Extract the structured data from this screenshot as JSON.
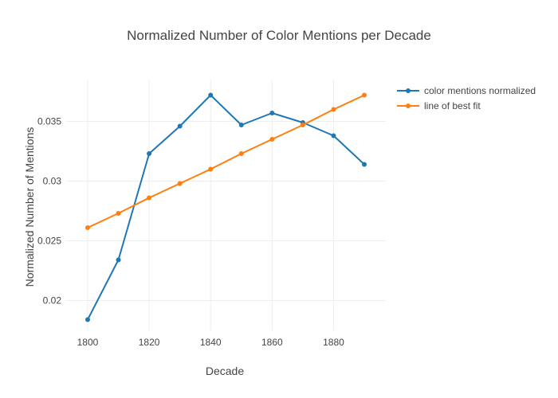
{
  "chart_data": {
    "type": "line",
    "title": "Normalized Number of Color Mentions per Decade",
    "xlabel": "Decade",
    "ylabel": "Normalized Number of Mentions",
    "x": [
      1800,
      1810,
      1820,
      1830,
      1840,
      1850,
      1860,
      1870,
      1880,
      1890
    ],
    "xlim": [
      1793,
      1897
    ],
    "ylim": [
      0.0175,
      0.0385
    ],
    "x_ticks": [
      1800,
      1820,
      1840,
      1860,
      1880
    ],
    "y_ticks": [
      0.02,
      0.025,
      0.03,
      0.035
    ],
    "x_tick_labels": [
      "1800",
      "1820",
      "1840",
      "1860",
      "1880"
    ],
    "y_tick_labels": [
      "0.02",
      "0.025",
      "0.03",
      "0.035"
    ],
    "grid": true,
    "legend_position": "top-right",
    "series": [
      {
        "name": "color mentions normalized",
        "color": "#1f77b4",
        "values": [
          0.0184,
          0.0234,
          0.0323,
          0.0346,
          0.0372,
          0.0347,
          0.0357,
          0.0349,
          0.0338,
          0.0314
        ]
      },
      {
        "name": "line of best fit",
        "color": "#ff7f0e",
        "values": [
          0.0261,
          0.0273,
          0.0286,
          0.0298,
          0.031,
          0.0323,
          0.0335,
          0.0347,
          0.036,
          0.0372
        ]
      }
    ]
  }
}
